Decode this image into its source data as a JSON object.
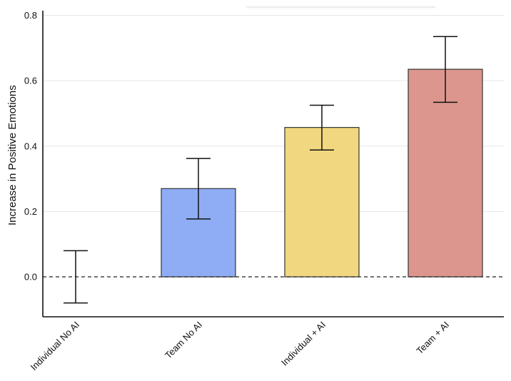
{
  "chart_data": {
    "type": "bar",
    "title": "",
    "xlabel": "",
    "ylabel": "Increase in Positive Emotions",
    "ylim": [
      -0.12,
      0.82
    ],
    "yticks": [
      0.0,
      0.2,
      0.4,
      0.6,
      0.8
    ],
    "ytick_labels": [
      "0.0",
      "0.2",
      "0.4",
      "0.6",
      "0.8"
    ],
    "grid": true,
    "reference_line": {
      "value": 0.0,
      "style": "dashed"
    },
    "categories": [
      "Individual No AI",
      "Team No AI",
      "Individual + AI",
      "Team + AI"
    ],
    "values": [
      0.0,
      0.27,
      0.457,
      0.635
    ],
    "error_low": [
      -0.08,
      0.177,
      0.388,
      0.534
    ],
    "error_high": [
      0.08,
      0.362,
      0.525,
      0.735
    ],
    "colors": [
      "#ffffff",
      "#8fadf5",
      "#f1d77f",
      "#dc968e"
    ]
  }
}
